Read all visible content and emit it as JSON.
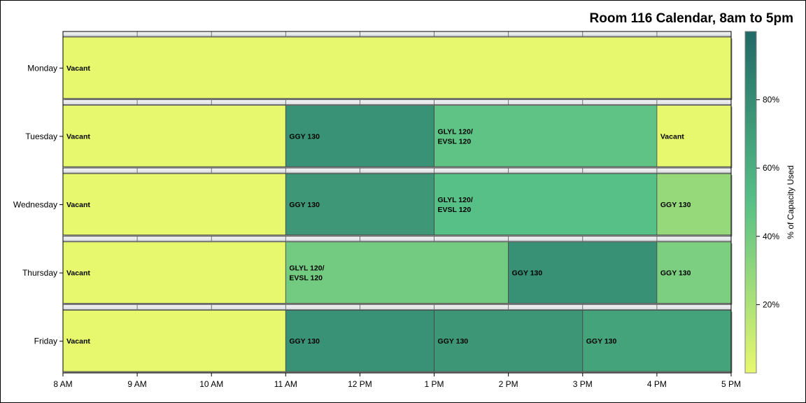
{
  "chart_data": {
    "type": "gantt",
    "title": "Room 116 Calendar, 8am to 5pm",
    "x_tick_labels": [
      "8 AM",
      "9 AM",
      "10 AM",
      "11 AM",
      "12 PM",
      "1 PM",
      "2 PM",
      "3 PM",
      "4 PM",
      "5 PM"
    ],
    "xlim": [
      8,
      17
    ],
    "days": [
      "Monday",
      "Tuesday",
      "Wednesday",
      "Thursday",
      "Friday"
    ],
    "colorbar": {
      "label": "% of Capacity Used",
      "range": [
        0,
        100
      ],
      "tick_labels": [
        "20%",
        "40%",
        "60%",
        "80%"
      ],
      "tick_values": [
        20,
        40,
        60,
        80
      ],
      "colors": [
        "#e8f86e",
        "#56c086",
        "#216a67"
      ]
    },
    "events": [
      {
        "day": "Monday",
        "start": 8,
        "end": 17,
        "label": [
          "Vacant"
        ],
        "capacity": 0
      },
      {
        "day": "Tuesday",
        "start": 8,
        "end": 11,
        "label": [
          "Vacant"
        ],
        "capacity": 0
      },
      {
        "day": "Tuesday",
        "start": 11,
        "end": 13,
        "label": [
          "GGY 130"
        ],
        "capacity": 77
      },
      {
        "day": "Tuesday",
        "start": 13,
        "end": 16,
        "label": [
          "GLYL 120/",
          "EVSL 120"
        ],
        "capacity": 47
      },
      {
        "day": "Tuesday",
        "start": 16,
        "end": 17,
        "label": [
          "Vacant"
        ],
        "capacity": 0
      },
      {
        "day": "Wednesday",
        "start": 8,
        "end": 11,
        "label": [
          "Vacant"
        ],
        "capacity": 0
      },
      {
        "day": "Wednesday",
        "start": 11,
        "end": 13,
        "label": [
          "GGY 130"
        ],
        "capacity": 73
      },
      {
        "day": "Wednesday",
        "start": 13,
        "end": 16,
        "label": [
          "GLYL 120/",
          "EVSL 120"
        ],
        "capacity": 50
      },
      {
        "day": "Wednesday",
        "start": 16,
        "end": 17,
        "label": [
          "GGY 130"
        ],
        "capacity": 28
      },
      {
        "day": "Thursday",
        "start": 8,
        "end": 11,
        "label": [
          "Vacant"
        ],
        "capacity": 0
      },
      {
        "day": "Thursday",
        "start": 11,
        "end": 14,
        "label": [
          "GLYL 120/",
          "EVSL 120"
        ],
        "capacity": 40
      },
      {
        "day": "Thursday",
        "start": 14,
        "end": 16,
        "label": [
          "GGY 130"
        ],
        "capacity": 78
      },
      {
        "day": "Thursday",
        "start": 16,
        "end": 17,
        "label": [
          "GGY 130"
        ],
        "capacity": 37
      },
      {
        "day": "Friday",
        "start": 8,
        "end": 11,
        "label": [
          "Vacant"
        ],
        "capacity": 0
      },
      {
        "day": "Friday",
        "start": 11,
        "end": 13,
        "label": [
          "GGY 130"
        ],
        "capacity": 77
      },
      {
        "day": "Friday",
        "start": 13,
        "end": 15,
        "label": [
          "GGY 130"
        ],
        "capacity": 74
      },
      {
        "day": "Friday",
        "start": 15,
        "end": 17,
        "label": [
          "GGY 130"
        ],
        "capacity": 67
      }
    ]
  }
}
